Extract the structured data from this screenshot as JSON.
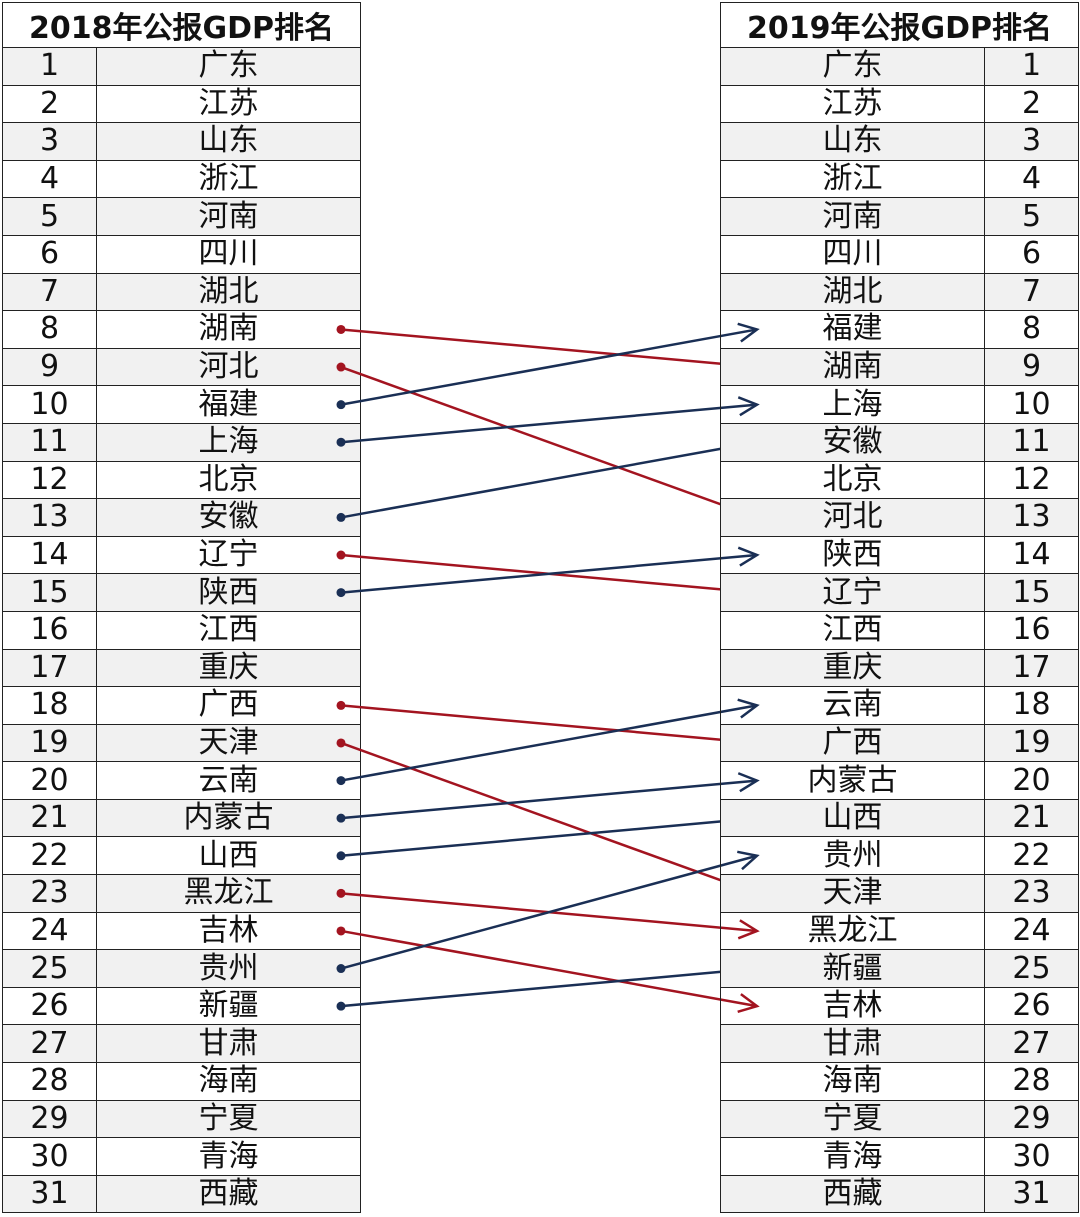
{
  "left_title": "2018年公报GDP排名",
  "right_title": "2019年公报GDP排名",
  "rank_2018": [
    "广东",
    "江苏",
    "山东",
    "浙江",
    "河南",
    "四川",
    "湖北",
    "湖南",
    "河北",
    "福建",
    "上海",
    "北京",
    "安徽",
    "辽宁",
    "陕西",
    "江西",
    "重庆",
    "广西",
    "天津",
    "云南",
    "内蒙古",
    "山西",
    "黑龙江",
    "吉林",
    "贵州",
    "新疆",
    "甘肃",
    "海南",
    "宁夏",
    "青海",
    "西藏"
  ],
  "rank_2019": [
    "广东",
    "江苏",
    "山东",
    "浙江",
    "河南",
    "四川",
    "湖北",
    "福建",
    "湖南",
    "上海",
    "安徽",
    "北京",
    "河北",
    "陕西",
    "辽宁",
    "江西",
    "重庆",
    "云南",
    "广西",
    "内蒙古",
    "山西",
    "贵州",
    "天津",
    "黑龙江",
    "新疆",
    "吉林",
    "甘肃",
    "海南",
    "宁夏",
    "青海",
    "西藏"
  ],
  "colors": {
    "rank_down": "#a31420",
    "rank_up": "#1a2f55",
    "row_shade": "#f1f1f1",
    "border": "#222222"
  }
}
